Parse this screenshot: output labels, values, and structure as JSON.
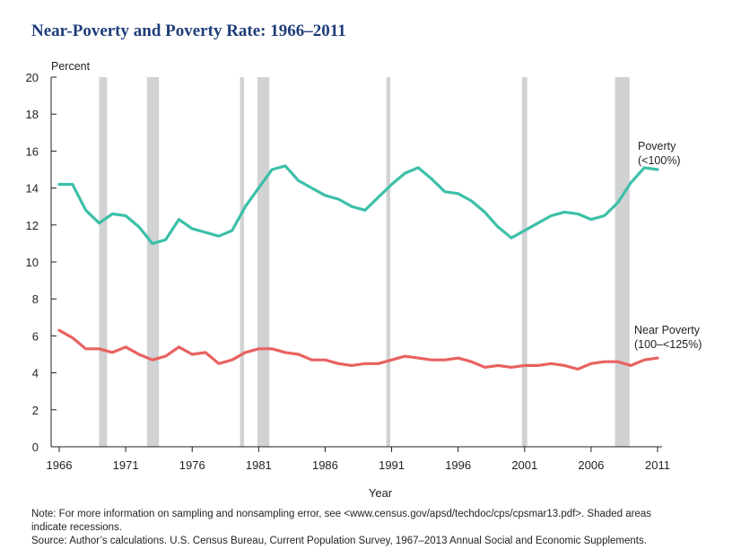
{
  "chart_data": {
    "type": "line",
    "title": "Near-Poverty and Poverty Rate: 1966–2011",
    "ylabel": "Percent",
    "xlabel": "Year",
    "xlim": [
      1966,
      2011
    ],
    "ylim": [
      0,
      20
    ],
    "y_ticks": [
      0,
      2,
      4,
      6,
      8,
      10,
      12,
      14,
      16,
      18,
      20
    ],
    "x_ticks": [
      "1966",
      "1971",
      "1976",
      "1981",
      "1986",
      "1991",
      "1996",
      "2001",
      "2006",
      "2011"
    ],
    "x_tick_values": [
      1966,
      1971,
      1976,
      1981,
      1986,
      1991,
      1996,
      2001,
      2006,
      2011
    ],
    "grid": false,
    "recessions": [
      [
        1969.0,
        1969.6
      ],
      [
        1972.6,
        1973.5
      ],
      [
        1979.6,
        1979.9
      ],
      [
        1980.9,
        1981.8
      ],
      [
        1990.6,
        1990.9
      ],
      [
        2000.8,
        2001.2
      ],
      [
        2007.8,
        2008.9
      ]
    ],
    "series": [
      {
        "name": "Poverty",
        "label_lines": [
          "Poverty",
          "(<100%)"
        ],
        "color": "#3cc0a8",
        "x": [
          1966,
          1967,
          1968,
          1969,
          1970,
          1971,
          1972,
          1973,
          1974,
          1975,
          1976,
          1977,
          1978,
          1979,
          1980,
          1981,
          1982,
          1983,
          1984,
          1985,
          1986,
          1987,
          1988,
          1989,
          1990,
          1991,
          1992,
          1993,
          1994,
          1995,
          1996,
          1997,
          1998,
          1999,
          2000,
          2001,
          2002,
          2003,
          2004,
          2005,
          2006,
          2007,
          2008,
          2009,
          2010,
          2011
        ],
        "values": [
          14.2,
          14.2,
          12.8,
          12.1,
          12.6,
          12.5,
          11.9,
          11.0,
          11.2,
          12.3,
          11.8,
          11.6,
          11.4,
          11.7,
          13.0,
          14.0,
          15.0,
          15.2,
          14.4,
          14.0,
          13.6,
          13.4,
          13.0,
          12.8,
          13.5,
          14.2,
          14.8,
          15.1,
          14.5,
          13.8,
          13.7,
          13.3,
          12.7,
          11.9,
          11.3,
          11.7,
          12.1,
          12.5,
          12.7,
          12.6,
          12.3,
          12.5,
          13.2,
          14.3,
          15.1,
          15.0
        ]
      },
      {
        "name": "Near Poverty",
        "label_lines": [
          "Near Poverty",
          "(100–<125%)"
        ],
        "color": "#e8625f",
        "x": [
          1966,
          1967,
          1968,
          1969,
          1970,
          1971,
          1972,
          1973,
          1974,
          1975,
          1976,
          1977,
          1978,
          1979,
          1980,
          1981,
          1982,
          1983,
          1984,
          1985,
          1986,
          1987,
          1988,
          1989,
          1990,
          1991,
          1992,
          1993,
          1994,
          1995,
          1996,
          1997,
          1998,
          1999,
          2000,
          2001,
          2002,
          2003,
          2004,
          2005,
          2006,
          2007,
          2008,
          2009,
          2010,
          2011
        ],
        "values": [
          6.3,
          5.9,
          5.3,
          5.3,
          5.1,
          5.4,
          5.0,
          4.7,
          4.9,
          5.4,
          5.0,
          5.1,
          4.5,
          4.7,
          5.1,
          5.3,
          5.3,
          5.1,
          5.0,
          4.7,
          4.7,
          4.5,
          4.4,
          4.5,
          4.5,
          4.7,
          4.9,
          4.8,
          4.7,
          4.7,
          4.8,
          4.6,
          4.3,
          4.4,
          4.3,
          4.4,
          4.4,
          4.5,
          4.4,
          4.2,
          4.5,
          4.6,
          4.6,
          4.4,
          4.7,
          4.8
        ]
      }
    ]
  },
  "notes": {
    "line1": "Note: For more information on sampling and nonsampling error, see <www.census.gov/apsd/techdoc/cps/cpsmar13.pdf>. Shaded areas",
    "line2": "indicate recessions.",
    "source": "Source: Author’s calculations. U.S. Census Bureau, Current Population Survey, 1967–2013 Annual Social and Economic Supplements."
  }
}
